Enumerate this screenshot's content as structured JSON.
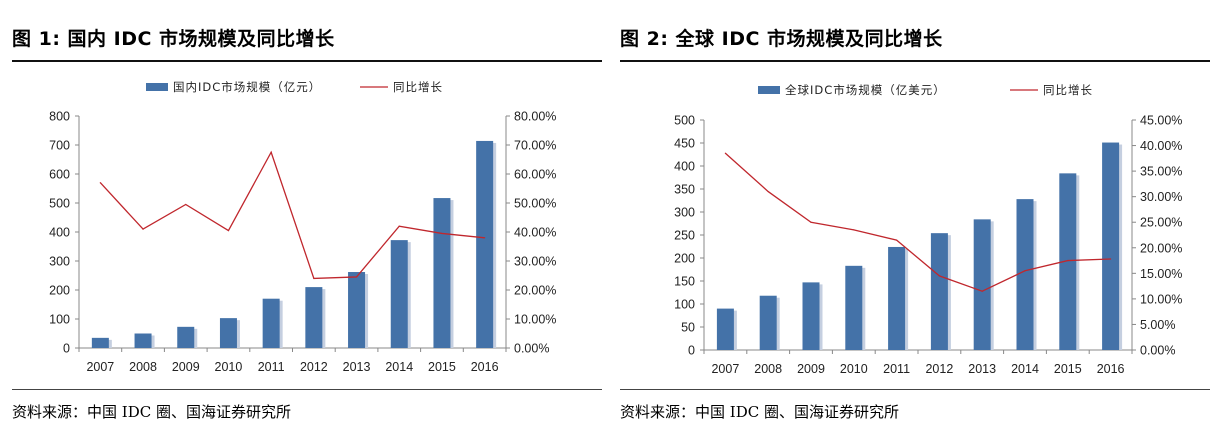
{
  "colors": {
    "bar": "#4472a8",
    "bar_shadow": "#c5cfe0",
    "line": "#c0272d",
    "axis": "#888888",
    "text": "#222222"
  },
  "chart_data": [
    {
      "type": "bar",
      "title": "图 1:  国内 IDC 市场规模及同比增长",
      "source": "资料来源：中国 IDC 圈、国海证券研究所",
      "categories": [
        "2007",
        "2008",
        "2009",
        "2010",
        "2011",
        "2012",
        "2013",
        "2014",
        "2015",
        "2016"
      ],
      "series": [
        {
          "name": "国内IDC市场规模（亿元）",
          "type": "bar",
          "axis": "left",
          "values": [
            35,
            50,
            73,
            103,
            170,
            210,
            262,
            372,
            517,
            714
          ]
        },
        {
          "name": "同比增长",
          "type": "line",
          "axis": "right",
          "values": [
            0.57,
            0.41,
            0.495,
            0.405,
            0.675,
            0.24,
            0.245,
            0.42,
            0.395,
            0.38
          ]
        }
      ],
      "ylim": [
        0,
        800
      ],
      "yticks": [
        "0",
        "100",
        "200",
        "300",
        "400",
        "500",
        "600",
        "700",
        "800"
      ],
      "y2lim": [
        0,
        0.8
      ],
      "y2ticks": [
        "0.00%",
        "10.00%",
        "20.00%",
        "30.00%",
        "40.00%",
        "50.00%",
        "60.00%",
        "70.00%",
        "80.00%"
      ],
      "legend_position": "top-center",
      "grid": false
    },
    {
      "type": "bar",
      "title": "图 2:  全球 IDC 市场规模及同比增长",
      "source": "资料来源：中国 IDC 圈、国海证券研究所",
      "categories": [
        "2007",
        "2008",
        "2009",
        "2010",
        "2011",
        "2012",
        "2013",
        "2014",
        "2015",
        "2016"
      ],
      "series": [
        {
          "name": "全球IDC市场规模（亿美元）",
          "type": "bar",
          "axis": "left",
          "values": [
            90,
            118,
            147,
            183,
            224,
            254,
            284,
            328,
            384,
            451
          ]
        },
        {
          "name": "同比增长",
          "type": "line",
          "axis": "right",
          "values": [
            0.385,
            0.31,
            0.25,
            0.235,
            0.215,
            0.145,
            0.115,
            0.155,
            0.175,
            0.178
          ]
        }
      ],
      "ylim": [
        0,
        500
      ],
      "yticks": [
        "0",
        "50",
        "100",
        "150",
        "200",
        "250",
        "300",
        "350",
        "400",
        "450",
        "500"
      ],
      "y2lim": [
        0,
        0.45
      ],
      "y2ticks": [
        "0.00%",
        "5.00%",
        "10.00%",
        "15.00%",
        "20.00%",
        "25.00%",
        "30.00%",
        "35.00%",
        "40.00%",
        "45.00%"
      ],
      "legend_position": "top-center",
      "grid": false
    }
  ]
}
